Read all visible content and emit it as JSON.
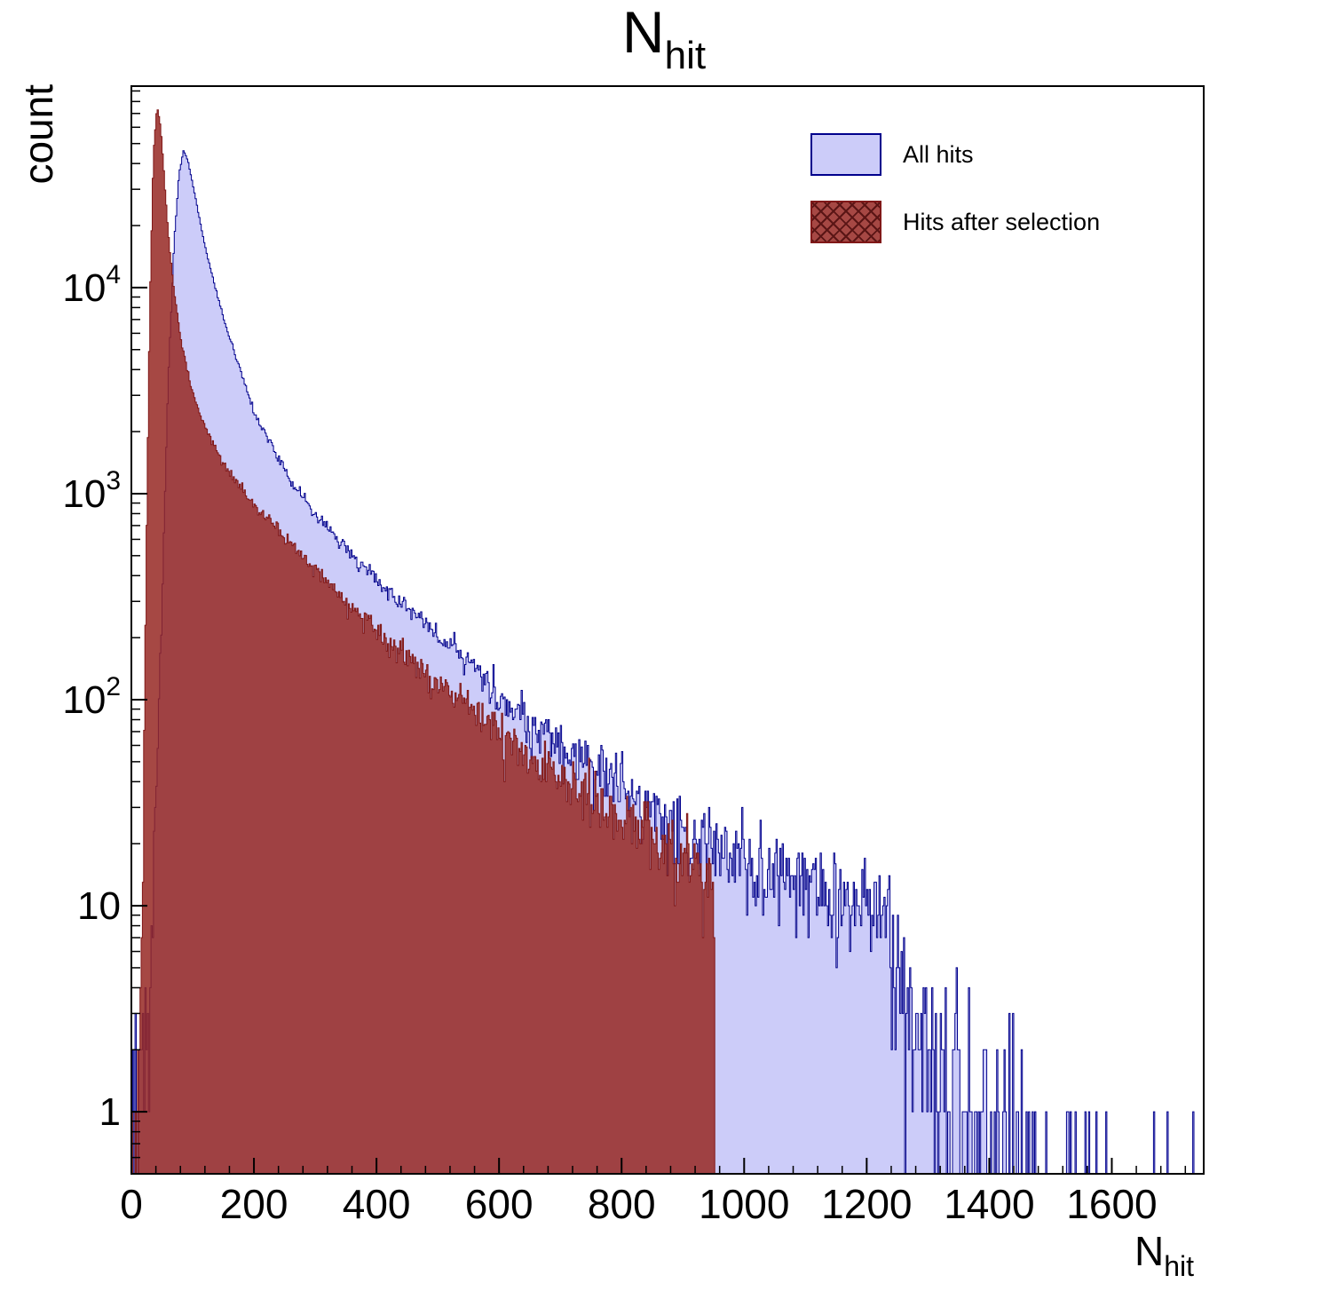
{
  "title": {
    "main": "N",
    "sub": "hit"
  },
  "axes": {
    "y_label": "count",
    "x_label_main": "N",
    "x_label_sub": "hit",
    "x_ticks": [
      0,
      200,
      400,
      600,
      800,
      1000,
      1200,
      1400,
      1600
    ],
    "y_ticks": [
      {
        "value": 1,
        "base": "1",
        "exp": ""
      },
      {
        "value": 10,
        "base": "10",
        "exp": ""
      },
      {
        "value": 100,
        "base": "10",
        "exp": "2"
      },
      {
        "value": 1000,
        "base": "10",
        "exp": "3"
      },
      {
        "value": 10000,
        "base": "10",
        "exp": "4"
      }
    ]
  },
  "legend": [
    {
      "label": "All hits",
      "fill": "#ccccf9",
      "stroke": "#00008c",
      "hatch": false,
      "hatch_color": ""
    },
    {
      "label": "Hits after selection",
      "fill": "rgba(150,40,35,0.85)",
      "stroke": "#801818",
      "hatch": true,
      "hatch_color": "#5a1515"
    }
  ],
  "chart_data": {
    "type": "bar",
    "subtype": "step-histogram-log",
    "title": "N_hit",
    "xlabel": "N_hit",
    "ylabel": "count",
    "x_range": [
      0,
      1750
    ],
    "y_range": [
      0.5,
      95000
    ],
    "y_scale": "log",
    "grid": false,
    "legend_position": "top-right",
    "bin_width": 2,
    "series": [
      {
        "name": "All hits",
        "fill": "#ccccf9",
        "stroke": "#00008c",
        "cutoff": 1750,
        "noise_seed": 20240801,
        "anchors": [
          [
            0,
            0.7
          ],
          [
            20,
            0.9
          ],
          [
            30,
            3
          ],
          [
            40,
            30
          ],
          [
            50,
            300
          ],
          [
            60,
            3500
          ],
          [
            70,
            17000
          ],
          [
            78,
            36000
          ],
          [
            85,
            46000
          ],
          [
            92,
            42000
          ],
          [
            100,
            32000
          ],
          [
            110,
            22500
          ],
          [
            120,
            16000
          ],
          [
            135,
            10500
          ],
          [
            150,
            7200
          ],
          [
            170,
            4700
          ],
          [
            200,
            2500
          ],
          [
            230,
            1700
          ],
          [
            260,
            1150
          ],
          [
            300,
            800
          ],
          [
            350,
            540
          ],
          [
            400,
            385
          ],
          [
            450,
            280
          ],
          [
            500,
            205
          ],
          [
            550,
            150
          ],
          [
            600,
            100
          ],
          [
            650,
            80
          ],
          [
            700,
            62
          ],
          [
            750,
            49
          ],
          [
            800,
            38
          ],
          [
            850,
            30
          ],
          [
            900,
            25
          ],
          [
            950,
            20
          ],
          [
            1000,
            16.5
          ],
          [
            1050,
            14
          ],
          [
            1100,
            12.5
          ],
          [
            1150,
            11
          ],
          [
            1200,
            10
          ],
          [
            1235,
            9
          ],
          [
            1255,
            5
          ],
          [
            1280,
            2.5
          ],
          [
            1320,
            1.5
          ],
          [
            1360,
            1.0
          ],
          [
            1400,
            0.7
          ],
          [
            1450,
            0.45
          ],
          [
            1500,
            0.2
          ],
          [
            1550,
            0.15
          ],
          [
            1600,
            0.15
          ],
          [
            1650,
            0.12
          ],
          [
            1700,
            0.1
          ],
          [
            1750,
            0.04
          ]
        ]
      },
      {
        "name": "Hits after selection",
        "fill": "rgba(150,40,35,0.85)",
        "stroke": "#801818",
        "cutoff": 952,
        "noise_seed": 777,
        "anchors": [
          [
            0,
            0.7
          ],
          [
            12,
            1
          ],
          [
            18,
            10
          ],
          [
            24,
            400
          ],
          [
            30,
            8000
          ],
          [
            36,
            45000
          ],
          [
            42,
            76000
          ],
          [
            48,
            60000
          ],
          [
            55,
            30000
          ],
          [
            62,
            16000
          ],
          [
            70,
            9500
          ],
          [
            80,
            5800
          ],
          [
            90,
            4100
          ],
          [
            100,
            3100
          ],
          [
            115,
            2300
          ],
          [
            130,
            1820
          ],
          [
            150,
            1430
          ],
          [
            175,
            1120
          ],
          [
            200,
            900
          ],
          [
            230,
            720
          ],
          [
            260,
            580
          ],
          [
            300,
            430
          ],
          [
            350,
            300
          ],
          [
            400,
            215
          ],
          [
            450,
            160
          ],
          [
            500,
            120
          ],
          [
            550,
            92
          ],
          [
            600,
            70
          ],
          [
            650,
            55
          ],
          [
            700,
            43
          ],
          [
            750,
            34
          ],
          [
            800,
            27
          ],
          [
            850,
            21
          ],
          [
            900,
            17
          ],
          [
            930,
            15
          ],
          [
            950,
            13
          ]
        ]
      }
    ]
  }
}
